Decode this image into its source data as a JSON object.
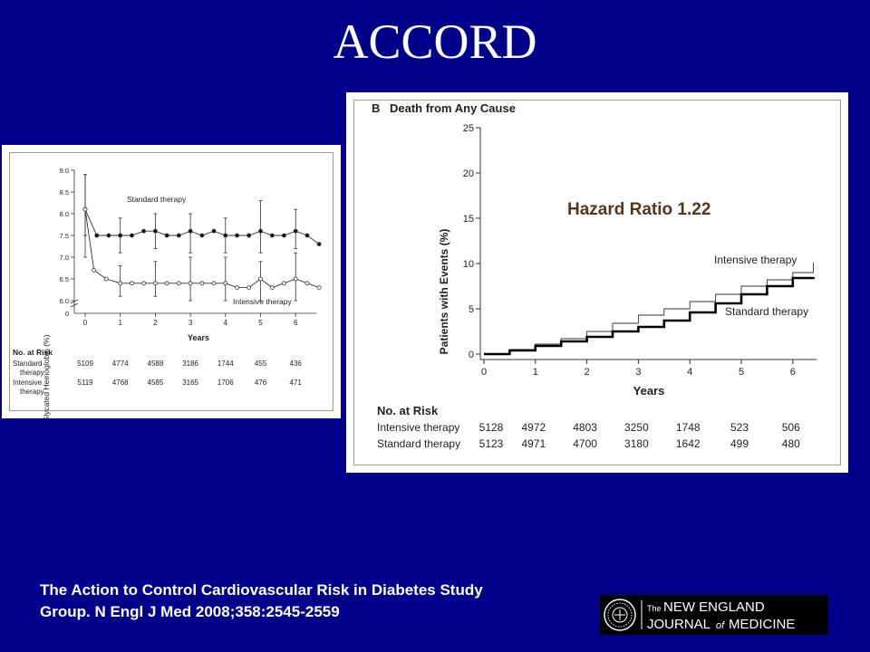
{
  "slide": {
    "title": "ACCORD",
    "citation_line1": "The Action to Control Cardiovascular Risk in Diabetes Study",
    "citation_line2": "Group. N Engl J Med 2008;358:2545-2559"
  },
  "logo": {
    "the": "The",
    "line1": "NEW ENGLAND",
    "line2a": "JOURNAL",
    "line2b": "of",
    "line2c": "MEDICINE",
    "seal_icon": "nejm-seal-icon"
  },
  "colors": {
    "background": "#00008b",
    "hazard_text": "#5a3519",
    "text": "#ffffff"
  },
  "chart_data": [
    {
      "type": "line",
      "xlabel": "Years",
      "ylabel": "Glycated Hemoglobin (%)",
      "ylim": [
        6.0,
        9.0
      ],
      "xlim": [
        0,
        6.6
      ],
      "axis_break": true,
      "yticks": [
        "6.0",
        "6.5",
        "7.0",
        "7.5",
        "8.0",
        "8.5",
        "9.0"
      ],
      "xticks": [
        "0",
        "1",
        "2",
        "3",
        "4",
        "5",
        "6"
      ],
      "series": [
        {
          "name": "Standard therapy",
          "marker": "filled-circle",
          "x": [
            0,
            0.33,
            0.67,
            1.0,
            1.33,
            1.67,
            2.0,
            2.33,
            2.67,
            3.0,
            3.33,
            3.67,
            4.0,
            4.33,
            4.67,
            5.0,
            5.33,
            5.67,
            6.0,
            6.33,
            6.67
          ],
          "y": [
            8.1,
            7.5,
            7.5,
            7.5,
            7.5,
            7.6,
            7.6,
            7.5,
            7.5,
            7.6,
            7.5,
            7.6,
            7.5,
            7.5,
            7.5,
            7.6,
            7.5,
            7.5,
            7.6,
            7.5,
            7.3
          ],
          "errorbars": [
            {
              "x": 0,
              "lo": 7.0,
              "hi": 8.9
            },
            {
              "x": 1,
              "lo": 7.1,
              "hi": 7.9
            },
            {
              "x": 2,
              "lo": 7.2,
              "hi": 8.0
            },
            {
              "x": 3,
              "lo": 7.1,
              "hi": 8.0
            },
            {
              "x": 4,
              "lo": 7.1,
              "hi": 7.9
            },
            {
              "x": 5,
              "lo": 7.1,
              "hi": 8.3
            },
            {
              "x": 6,
              "lo": 7.2,
              "hi": 8.1
            }
          ]
        },
        {
          "name": "Intensive therapy",
          "marker": "open-circle",
          "x": [
            0,
            0.25,
            0.6,
            1.0,
            1.33,
            1.67,
            2.0,
            2.33,
            2.67,
            3.0,
            3.33,
            3.67,
            4.0,
            4.33,
            4.67,
            5.0,
            5.33,
            5.67,
            6.0,
            6.33,
            6.67
          ],
          "y": [
            8.1,
            6.7,
            6.5,
            6.4,
            6.4,
            6.4,
            6.4,
            6.4,
            6.4,
            6.4,
            6.4,
            6.4,
            6.4,
            6.3,
            6.3,
            6.5,
            6.3,
            6.4,
            6.5,
            6.4,
            6.3
          ],
          "errorbars": [
            {
              "x": 0,
              "lo": 7.5,
              "hi": 8.9
            },
            {
              "x": 1,
              "lo": 6.1,
              "hi": 6.8
            },
            {
              "x": 2,
              "lo": 6.1,
              "hi": 6.9
            },
            {
              "x": 3,
              "lo": 6.0,
              "hi": 7.0
            },
            {
              "x": 4,
              "lo": 6.0,
              "hi": 7.0
            },
            {
              "x": 5,
              "lo": 6.0,
              "hi": 6.9
            },
            {
              "x": 6,
              "lo": 6.0,
              "hi": 7.1
            }
          ]
        }
      ],
      "risk_table": {
        "title": "No. at Risk",
        "rows": [
          {
            "label_line1": "Standard",
            "label_line2": "therapy",
            "values": [
              "5109",
              "4774",
              "4588",
              "3186",
              "1744",
              "455",
              "436"
            ]
          },
          {
            "label_line1": "Intensive",
            "label_line2": "therapy",
            "values": [
              "5119",
              "4768",
              "4585",
              "3165",
              "1706",
              "476",
              "471"
            ]
          }
        ]
      }
    },
    {
      "type": "line",
      "panel_letter": "B",
      "title": "Death from Any Cause",
      "annotation": "Hazard Ratio 1.22",
      "xlabel": "Years",
      "ylabel": "Patients with Events (%)",
      "ylim": [
        0,
        25
      ],
      "xlim": [
        0,
        6.4
      ],
      "yticks": [
        "0",
        "5",
        "10",
        "15",
        "20",
        "25"
      ],
      "xticks": [
        "0",
        "1",
        "2",
        "3",
        "4",
        "5",
        "6"
      ],
      "series": [
        {
          "name": "Intensive therapy",
          "style": "thin",
          "x": [
            0,
            0.5,
            1,
            1.5,
            2,
            2.5,
            3,
            3.5,
            4,
            4.5,
            5,
            5.5,
            6,
            6.4
          ],
          "y": [
            0,
            0.5,
            1.1,
            1.7,
            2.5,
            3.4,
            4.3,
            5.0,
            5.8,
            6.6,
            7.5,
            8.2,
            9.0,
            10.1
          ]
        },
        {
          "name": "Standard therapy",
          "style": "thick",
          "x": [
            0,
            0.5,
            1,
            1.5,
            2,
            2.5,
            3,
            3.5,
            4,
            4.5,
            5,
            5.5,
            6,
            6.4
          ],
          "y": [
            0,
            0.4,
            0.9,
            1.4,
            1.9,
            2.5,
            3.0,
            3.7,
            4.6,
            5.6,
            6.6,
            7.5,
            8.4,
            8.5
          ]
        }
      ],
      "risk_table": {
        "title": "No. at Risk",
        "rows": [
          {
            "label": "Intensive therapy",
            "values": [
              "5128",
              "4972",
              "4803",
              "3250",
              "1748",
              "523",
              "506"
            ]
          },
          {
            "label": "Standard therapy",
            "values": [
              "5123",
              "4971",
              "4700",
              "3180",
              "1642",
              "499",
              "480"
            ]
          }
        ]
      }
    }
  ]
}
